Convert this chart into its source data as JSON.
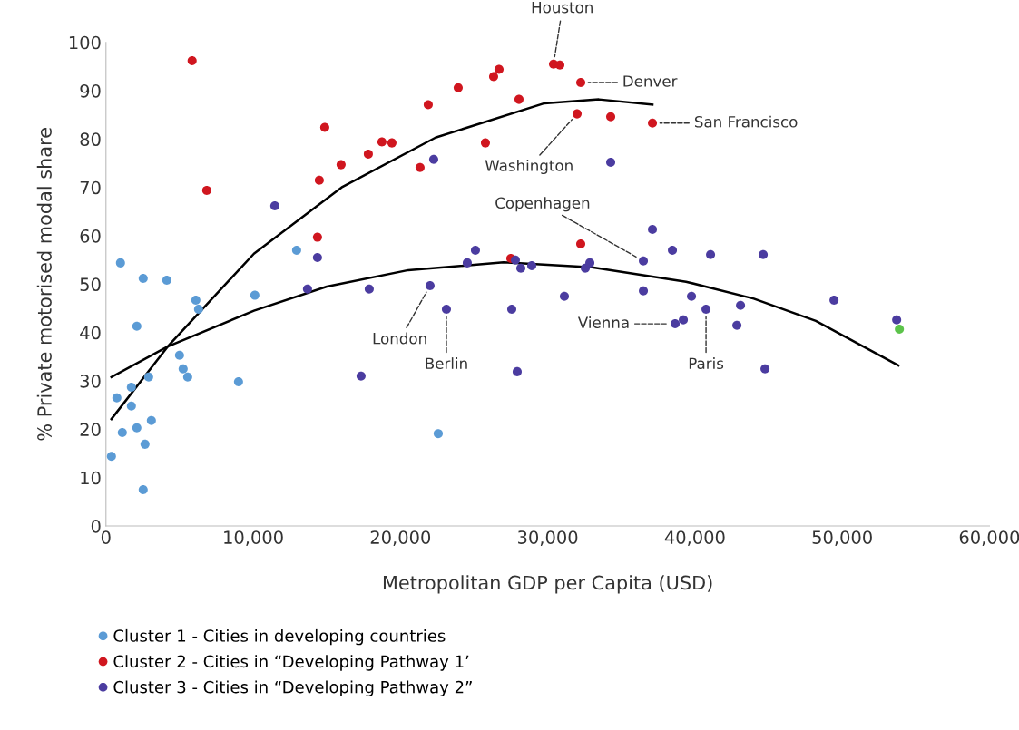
{
  "chart_data": {
    "type": "scatter",
    "xlabel": "Metropolitan GDP per Capita (USD)",
    "ylabel": "% Private motorised modal share",
    "xlim": [
      0,
      60000
    ],
    "xticks": [
      0,
      {
        "value": 10000,
        "label": "10,000"
      },
      {
        "value": 20000,
        "label": "20,000"
      },
      {
        "value": 30000,
        "label": "30,000"
      },
      {
        "value": 40000,
        "label": "40,000"
      },
      {
        "value": 50000,
        "label": "50,000"
      },
      {
        "value": 60000,
        "label": "60,000"
      }
    ],
    "ylim": [
      0,
      100
    ],
    "yticks": [
      0,
      10,
      20,
      30,
      40,
      50,
      60,
      70,
      80,
      90,
      100
    ],
    "grid": false,
    "legend": "bottom left",
    "marker": "circle",
    "series": [
      {
        "name": "Cluster 1 - Cities in developing countries",
        "color": "#5b9bd5",
        "x": [
          986,
          2528,
          4130,
          6103,
          6288,
          2096,
          10111,
          12947,
          4994,
          5240,
          5549,
          2898,
          9001,
          1726,
          740,
          1726,
          3083,
          2096,
          1110,
          2651,
          370,
          2528,
          22564
        ],
        "values": [
          54.4,
          51.2,
          50.8,
          46.7,
          44.8,
          41.3,
          47.7,
          57.0,
          35.3,
          32.5,
          30.8,
          30.8,
          29.8,
          28.7,
          26.5,
          24.8,
          21.8,
          20.3,
          19.3,
          16.9,
          14.4,
          7.5,
          19.1
        ]
      },
      {
        "name": "Cluster 2 - Cities in “Developing Pathway 1’",
        "color": "#d0161f",
        "x": [
          5850,
          6843,
          14858,
          14488,
          15967,
          17817,
          18742,
          19420,
          21331,
          21886,
          23920,
          25770,
          26325,
          26695,
          28051,
          30394,
          30825,
          32243,
          31996,
          34277,
          37113,
          14364,
          32243,
          27496
        ],
        "values": [
          96.2,
          69.4,
          82.4,
          71.5,
          74.7,
          76.9,
          79.4,
          79.2,
          74.1,
          87.1,
          90.6,
          79.2,
          92.9,
          94.4,
          88.2,
          95.5,
          95.3,
          91.7,
          85.2,
          84.6,
          83.3,
          59.7,
          58.3,
          55.3
        ]
      },
      {
        "name": "Cluster 3 - Cities in “Developing Pathway 2”",
        "color": "#4b3ca0",
        "x": [
          11467,
          22256,
          34277,
          37113,
          14364,
          25092,
          24537,
          27804,
          28175,
          28915,
          32552,
          32861,
          36497,
          38470,
          41059,
          44634,
          13686,
          17879,
          22010,
          23120,
          27558,
          31133,
          36497,
          39764,
          38655,
          39210,
          40751,
          43094,
          42847,
          49443,
          53697,
          17324,
          27927,
          44758
        ],
        "values": [
          66.2,
          75.8,
          75.2,
          61.3,
          55.5,
          57.0,
          54.4,
          55.0,
          53.3,
          53.8,
          53.3,
          54.4,
          54.8,
          57.0,
          56.1,
          56.1,
          49.0,
          49.0,
          49.7,
          44.8,
          44.8,
          47.5,
          48.6,
          47.5,
          41.8,
          42.6,
          44.8,
          45.6,
          41.5,
          46.7,
          42.6,
          31.0,
          31.9,
          32.5
        ]
      },
      {
        "color": "#5cc34a",
        "x": [
          53882
        ],
        "values": [
          40.7
        ]
      },
      {
        "type": "line",
        "color": "#000000",
        "marker": "none",
        "line_style": "solid",
        "x": [
          370,
          4192,
          10049,
          16000,
          22380,
          29777,
          33476,
          37113
        ],
        "values": [
          22.1,
          37.1,
          56.3,
          70.0,
          80.3,
          87.4,
          88.2,
          87.1
        ]
      },
      {
        "type": "line",
        "color": "#000000",
        "marker": "none",
        "line_style": "solid",
        "x": [
          370,
          4192,
          10049,
          15000,
          20530,
          27000,
          33000,
          39395,
          44000,
          48210,
          53820
        ],
        "values": [
          30.8,
          37.1,
          44.5,
          49.5,
          52.9,
          54.5,
          53.5,
          50.5,
          47.0,
          42.4,
          33.2
        ]
      }
    ],
    "annotations": [
      {
        "text": "Houston",
        "x": 30394,
        "y": 95.5
      },
      {
        "text": "Denver",
        "x": 32243,
        "y": 91.7
      },
      {
        "text": "San Francisco",
        "x": 37113,
        "y": 83.3
      },
      {
        "text": "Washington",
        "x": 31996,
        "y": 85.2
      },
      {
        "text": "Copenhagen",
        "x": 36497,
        "y": 54.8
      },
      {
        "text": "London",
        "x": 22010,
        "y": 49.7
      },
      {
        "text": "Berlin",
        "x": 23120,
        "y": 44.8
      },
      {
        "text": "Vienna",
        "x": 38655,
        "y": 41.8
      },
      {
        "text": "Paris",
        "x": 40751,
        "y": 44.8
      }
    ]
  }
}
